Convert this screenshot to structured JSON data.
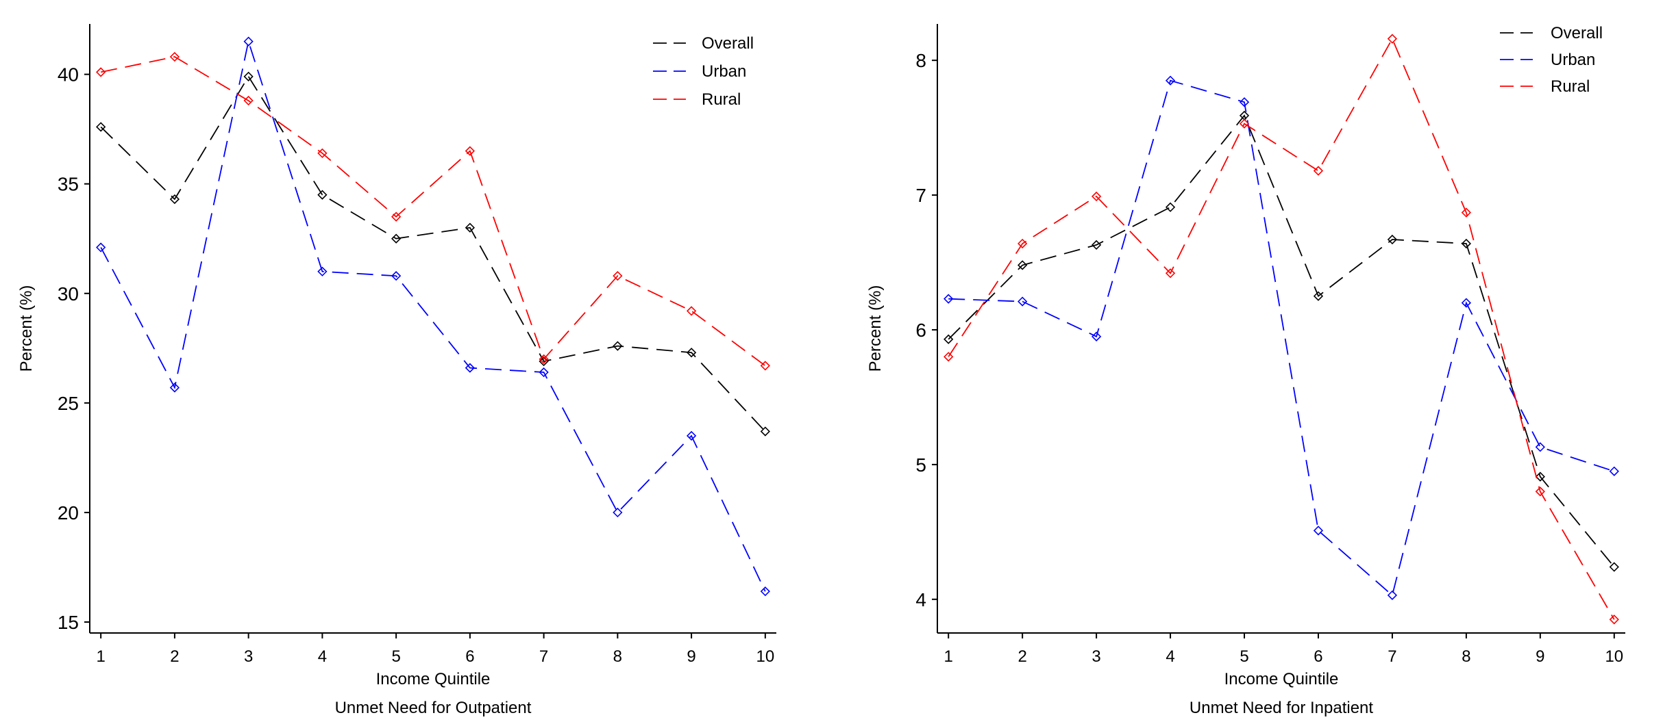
{
  "chart_data": [
    {
      "type": "line",
      "title": "",
      "caption": "Unmet Need for Outpatient",
      "xlabel": "Income Quintile",
      "ylabel": "Percent (%)",
      "x": [
        1,
        2,
        3,
        4,
        5,
        6,
        7,
        8,
        9,
        10
      ],
      "x_tick_labels": [
        "1",
        "2",
        "3",
        "4",
        "5",
        "6",
        "7",
        "8",
        "9",
        "10"
      ],
      "y_ticks": [
        15,
        20,
        25,
        30,
        35,
        40
      ],
      "y_tick_labels": [
        "15",
        "20",
        "25",
        "30",
        "35",
        "40"
      ],
      "xlim": [
        0.85,
        10.15
      ],
      "ylim": [
        14.5,
        42.3
      ],
      "grid": false,
      "legend_position": "top-right",
      "series": [
        {
          "name": "Overall",
          "color": "#000000",
          "marker": "diamond",
          "line": "dashed",
          "values": [
            37.6,
            34.3,
            39.9,
            34.5,
            32.5,
            33.0,
            26.9,
            27.6,
            27.3,
            23.7
          ]
        },
        {
          "name": "Urban",
          "color": "#0000ff",
          "marker": "diamond",
          "line": "dashed",
          "values": [
            32.1,
            25.7,
            41.5,
            31.0,
            30.8,
            26.6,
            26.4,
            20.0,
            23.5,
            16.4
          ]
        },
        {
          "name": "Rural",
          "color": "#ff0000",
          "marker": "diamond",
          "line": "dashed",
          "values": [
            40.1,
            40.8,
            38.8,
            36.4,
            33.5,
            36.5,
            27.0,
            30.8,
            29.2,
            26.7
          ]
        }
      ]
    },
    {
      "type": "line",
      "title": "",
      "caption": "Unmet Need for Inpatient",
      "xlabel": "Income Quintile",
      "ylabel": "Percent (%)",
      "x": [
        1,
        2,
        3,
        4,
        5,
        6,
        7,
        8,
        9,
        10
      ],
      "x_tick_labels": [
        "1",
        "2",
        "3",
        "4",
        "5",
        "6",
        "7",
        "8",
        "9",
        "10"
      ],
      "y_ticks": [
        4,
        5,
        6,
        7,
        8
      ],
      "y_tick_labels": [
        "4",
        "5",
        "6",
        "7",
        "8"
      ],
      "xlim": [
        0.85,
        10.15
      ],
      "ylim": [
        3.75,
        8.27
      ],
      "grid": false,
      "legend_position": "top-right",
      "series": [
        {
          "name": "Overall",
          "color": "#000000",
          "marker": "diamond",
          "line": "dashed",
          "values": [
            5.93,
            6.48,
            6.63,
            6.91,
            7.59,
            6.25,
            6.67,
            6.64,
            4.91,
            4.24
          ]
        },
        {
          "name": "Urban",
          "color": "#0000ff",
          "marker": "diamond",
          "line": "dashed",
          "values": [
            6.23,
            6.21,
            5.95,
            7.85,
            7.69,
            4.51,
            4.03,
            6.2,
            5.13,
            4.95
          ]
        },
        {
          "name": "Rural",
          "color": "#ff0000",
          "marker": "diamond",
          "line": "dashed",
          "values": [
            5.8,
            6.64,
            6.99,
            6.42,
            7.53,
            7.18,
            8.16,
            6.87,
            4.8,
            3.85
          ]
        }
      ]
    }
  ]
}
